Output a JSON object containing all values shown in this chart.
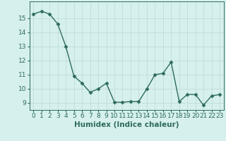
{
  "x": [
    0,
    1,
    2,
    3,
    4,
    5,
    6,
    7,
    8,
    9,
    10,
    11,
    12,
    13,
    14,
    15,
    16,
    17,
    18,
    19,
    20,
    21,
    22,
    23
  ],
  "y": [
    15.3,
    15.5,
    15.3,
    14.6,
    13.0,
    10.9,
    10.4,
    9.75,
    10.0,
    10.4,
    9.05,
    9.05,
    9.1,
    9.1,
    10.0,
    11.0,
    11.1,
    11.9,
    9.1,
    9.6,
    9.6,
    8.85,
    9.5,
    9.6
  ],
  "line_color": "#2e6b5e",
  "marker": "D",
  "marker_size": 2.5,
  "bg_color": "#d6f0ee",
  "grid_color": "#c0dcd8",
  "tick_color": "#2e6b5e",
  "xlabel": "Humidex (Indice chaleur)",
  "ylim": [
    8.5,
    16.2
  ],
  "xlim": [
    -0.5,
    23.5
  ],
  "yticks": [
    9,
    10,
    11,
    12,
    13,
    14,
    15
  ],
  "xticks": [
    0,
    1,
    2,
    3,
    4,
    5,
    6,
    7,
    8,
    9,
    10,
    11,
    12,
    13,
    14,
    15,
    16,
    17,
    18,
    19,
    20,
    21,
    22,
    23
  ],
  "linewidth": 1.0,
  "xlabel_fontsize": 7.5,
  "tick_fontsize": 6.5
}
